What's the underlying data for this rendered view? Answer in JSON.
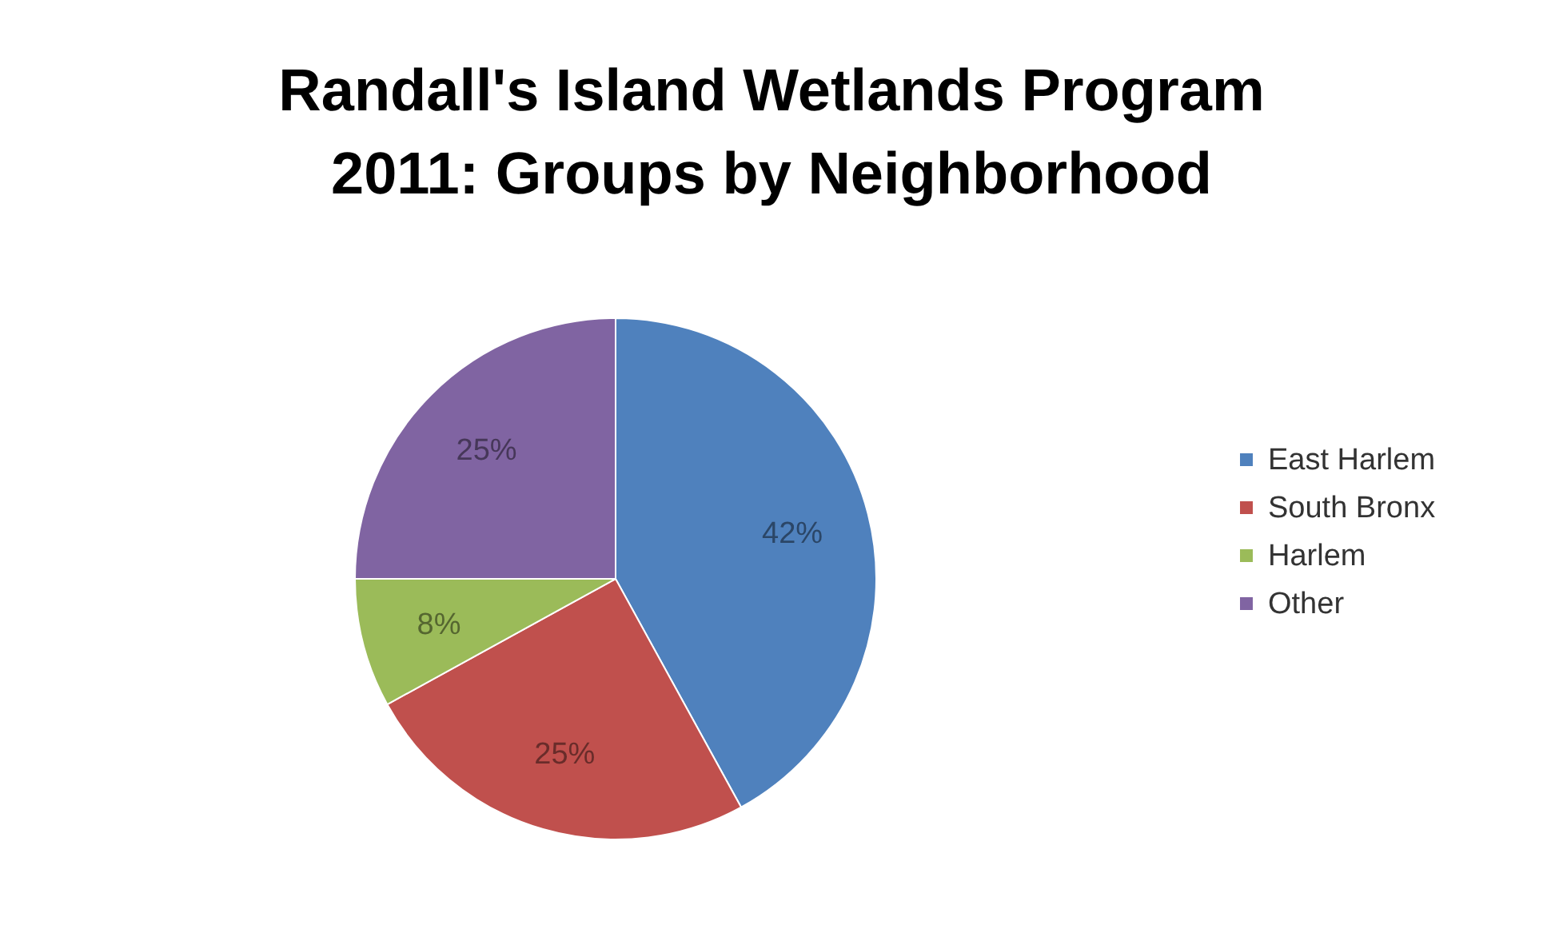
{
  "chart_data": {
    "type": "pie",
    "title": "Randall's Island Wetlands Program 2011: Groups by Neighborhood",
    "categories": [
      "East Harlem",
      "South Bronx",
      "Harlem",
      "Other"
    ],
    "values": [
      42,
      25,
      8,
      25
    ],
    "value_labels": [
      "42%",
      "25%",
      "8%",
      "25%"
    ],
    "colors": [
      "#4f81bd",
      "#c0504d",
      "#9bbb59",
      "#8064a2"
    ],
    "legend": "right"
  }
}
